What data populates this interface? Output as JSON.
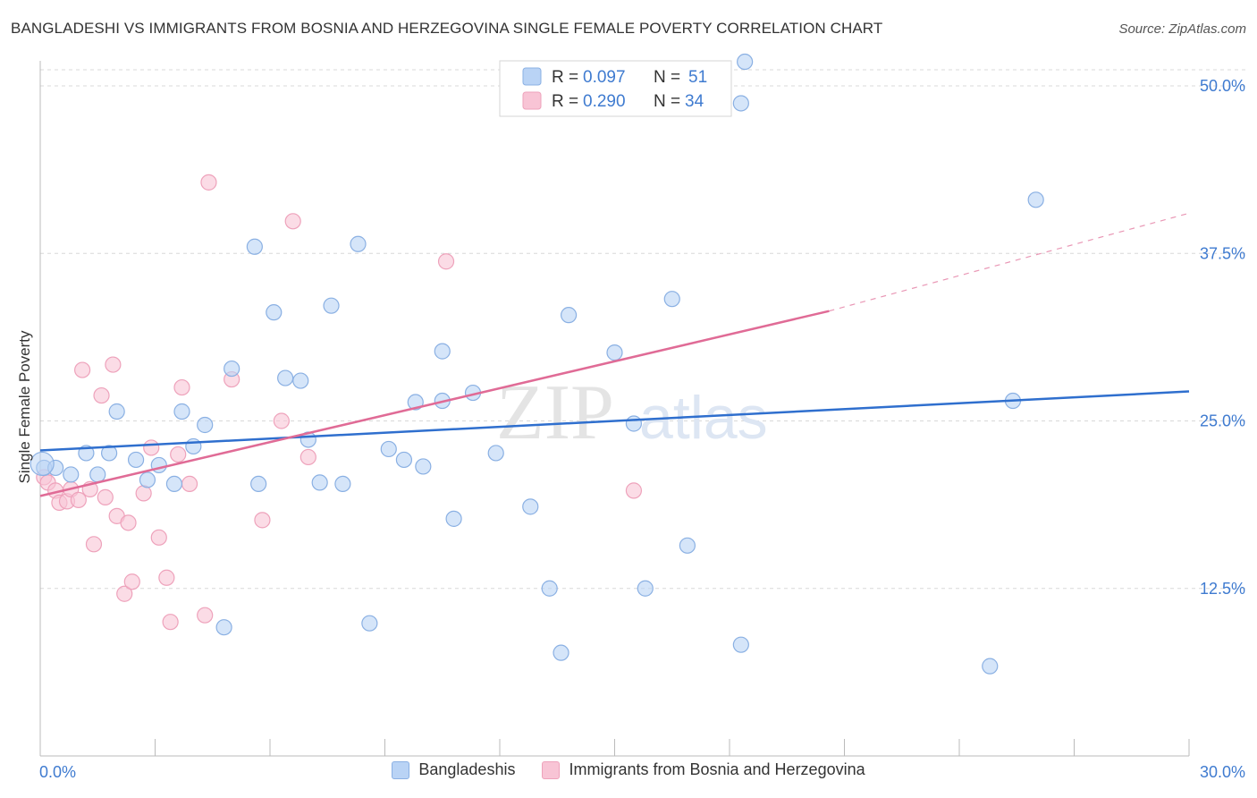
{
  "title": "BANGLADESHI VS IMMIGRANTS FROM BOSNIA AND HERZEGOVINA SINGLE FEMALE POVERTY CORRELATION CHART",
  "source": "Source: ZipAtlas.com",
  "watermark": {
    "zip": "ZIP",
    "atlas": "atlas"
  },
  "colors": {
    "blue_fill": "#b9d3f5",
    "blue_stroke": "#8ab0e3",
    "blue_line": "#2f6fce",
    "pink_fill": "#f8c4d5",
    "pink_stroke": "#eea2bb",
    "pink_line": "#e06b96",
    "axis_text": "#3f7bd0",
    "grid": "#d8d8d8"
  },
  "chart_data": {
    "type": "scatter",
    "xlabel": "",
    "ylabel": "Single Female Poverty",
    "xlim": [
      0,
      30
    ],
    "ylim": [
      0,
      50
    ],
    "x_tick_labels": [
      "0.0%",
      "30.0%"
    ],
    "y_ticks": [
      12.5,
      25.0,
      37.5,
      50.0
    ],
    "y_tick_labels": [
      "12.5%",
      "25.0%",
      "37.5%",
      "50.0%"
    ],
    "grid": "horizontal-dashed",
    "legend": [
      {
        "r_label": "R = ",
        "r_value": "0.097",
        "n_label": "N = ",
        "n_value": "51"
      },
      {
        "r_label": "R = ",
        "r_value": "0.290",
        "n_label": "N = ",
        "n_value": "34"
      }
    ],
    "series": [
      {
        "name": "Bangladeshis",
        "color": "blue",
        "trend": {
          "x0": 0,
          "y0": 22.8,
          "x1": 30,
          "y1": 27.2
        },
        "points": [
          [
            0.1,
            21.5
          ],
          [
            0.4,
            21.5
          ],
          [
            0.8,
            21.0
          ],
          [
            1.2,
            22.6
          ],
          [
            1.5,
            21.0
          ],
          [
            1.8,
            22.6
          ],
          [
            2.0,
            25.7
          ],
          [
            2.5,
            22.1
          ],
          [
            2.8,
            20.6
          ],
          [
            3.1,
            21.7
          ],
          [
            3.5,
            20.3
          ],
          [
            3.7,
            25.7
          ],
          [
            4.0,
            23.1
          ],
          [
            4.3,
            24.7
          ],
          [
            4.8,
            9.6
          ],
          [
            5.0,
            28.9
          ],
          [
            5.6,
            38.0
          ],
          [
            5.7,
            20.3
          ],
          [
            6.1,
            33.1
          ],
          [
            6.4,
            28.2
          ],
          [
            6.8,
            28.0
          ],
          [
            7.0,
            23.6
          ],
          [
            7.3,
            20.4
          ],
          [
            7.6,
            33.6
          ],
          [
            7.9,
            20.3
          ],
          [
            8.3,
            38.2
          ],
          [
            8.6,
            9.9
          ],
          [
            9.1,
            22.9
          ],
          [
            9.5,
            22.1
          ],
          [
            9.8,
            26.4
          ],
          [
            10.0,
            21.6
          ],
          [
            10.5,
            26.5
          ],
          [
            10.5,
            30.2
          ],
          [
            10.8,
            17.7
          ],
          [
            11.3,
            27.1
          ],
          [
            11.9,
            22.6
          ],
          [
            12.8,
            18.6
          ],
          [
            13.3,
            12.5
          ],
          [
            13.6,
            7.7
          ],
          [
            13.8,
            32.9
          ],
          [
            15.0,
            30.1
          ],
          [
            15.5,
            24.8
          ],
          [
            15.8,
            12.5
          ],
          [
            16.5,
            34.1
          ],
          [
            16.9,
            15.7
          ],
          [
            18.3,
            48.7
          ],
          [
            18.3,
            8.3
          ],
          [
            18.4,
            51.8
          ],
          [
            24.8,
            6.7
          ],
          [
            25.4,
            26.5
          ],
          [
            26.0,
            41.5
          ]
        ]
      },
      {
        "name": "Immigrants from Bosnia and Herzegovina",
        "color": "pink",
        "trend": {
          "x0": 0,
          "y0": 19.4,
          "x1": 20.6,
          "y1": 33.2
        },
        "trend_ext": {
          "x0": 20.6,
          "y0": 33.2,
          "x1": 30,
          "y1": 40.5
        },
        "points": [
          [
            0.1,
            20.8
          ],
          [
            0.2,
            20.4
          ],
          [
            0.4,
            19.8
          ],
          [
            0.5,
            18.9
          ],
          [
            0.7,
            19.0
          ],
          [
            0.8,
            19.9
          ],
          [
            1.0,
            19.1
          ],
          [
            1.1,
            28.8
          ],
          [
            1.3,
            19.9
          ],
          [
            1.4,
            15.8
          ],
          [
            1.6,
            26.9
          ],
          [
            1.7,
            19.3
          ],
          [
            1.9,
            29.2
          ],
          [
            2.0,
            17.9
          ],
          [
            2.2,
            12.1
          ],
          [
            2.3,
            17.4
          ],
          [
            2.4,
            13.0
          ],
          [
            2.7,
            19.6
          ],
          [
            2.9,
            23.0
          ],
          [
            3.1,
            16.3
          ],
          [
            3.3,
            13.3
          ],
          [
            3.4,
            10.0
          ],
          [
            3.6,
            22.5
          ],
          [
            3.7,
            27.5
          ],
          [
            3.9,
            20.3
          ],
          [
            4.3,
            10.5
          ],
          [
            4.4,
            42.8
          ],
          [
            5.0,
            28.1
          ],
          [
            5.8,
            17.6
          ],
          [
            6.3,
            25.0
          ],
          [
            6.6,
            39.9
          ],
          [
            7.0,
            22.3
          ],
          [
            10.6,
            36.9
          ],
          [
            15.5,
            19.8
          ]
        ]
      }
    ]
  }
}
